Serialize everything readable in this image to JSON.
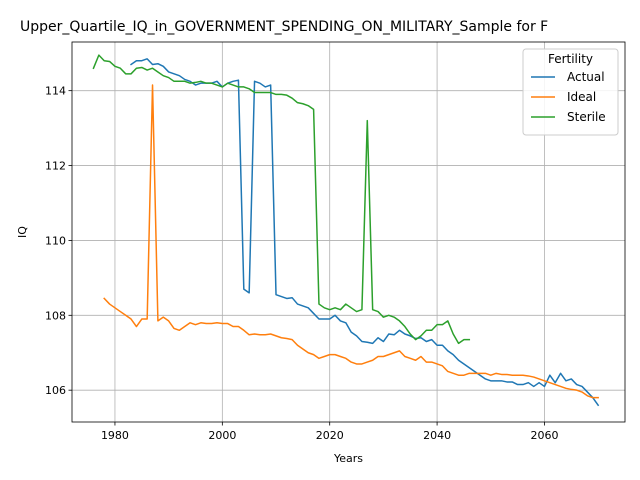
{
  "chart_data": {
    "type": "line",
    "title": "Upper_Quartile_IQ_in_GOVERNMENT_SPENDING_ON_MILITARY_Sample for F",
    "xlabel": "Years",
    "ylabel": "IQ",
    "xlim": [
      1972,
      2075
    ],
    "ylim": [
      105.15,
      115.3
    ],
    "xticks": [
      1980,
      2000,
      2020,
      2040,
      2060
    ],
    "yticks": [
      106,
      108,
      110,
      112,
      114
    ],
    "grid": true,
    "legend": {
      "title": "Fertility",
      "placement": "top-right"
    },
    "series": [
      {
        "name": "Actual",
        "color": "#1f77b4",
        "x": [
          1983,
          1984,
          1985,
          1986,
          1987,
          1988,
          1989,
          1990,
          1991,
          1992,
          1993,
          1994,
          1995,
          1996,
          1997,
          1998,
          1999,
          2000,
          2001,
          2002,
          2003,
          2004,
          2005,
          2006,
          2007,
          2008,
          2009,
          2010,
          2011,
          2012,
          2013,
          2014,
          2015,
          2016,
          2017,
          2018,
          2019,
          2020,
          2021,
          2022,
          2023,
          2024,
          2025,
          2026,
          2027,
          2028,
          2029,
          2030,
          2031,
          2032,
          2033,
          2034,
          2035,
          2036,
          2037,
          2038,
          2039,
          2040,
          2041,
          2042,
          2043,
          2044,
          2045,
          2046,
          2047,
          2048,
          2049,
          2050,
          2051,
          2052,
          2053,
          2054,
          2055,
          2056,
          2057,
          2058,
          2059,
          2060,
          2061,
          2062,
          2063,
          2064,
          2065,
          2066,
          2067,
          2068,
          2069,
          2070
        ],
        "y": [
          114.7,
          114.8,
          114.8,
          114.85,
          114.7,
          114.72,
          114.65,
          114.5,
          114.45,
          114.4,
          114.3,
          114.25,
          114.15,
          114.2,
          114.2,
          114.2,
          114.25,
          114.1,
          114.2,
          114.25,
          114.28,
          108.7,
          108.6,
          114.25,
          114.2,
          114.1,
          114.15,
          108.55,
          108.5,
          108.45,
          108.47,
          108.3,
          108.25,
          108.2,
          108.05,
          107.9,
          107.9,
          107.9,
          108.0,
          107.85,
          107.8,
          107.55,
          107.45,
          107.3,
          107.28,
          107.25,
          107.4,
          107.3,
          107.5,
          107.48,
          107.6,
          107.5,
          107.45,
          107.38,
          107.4,
          107.3,
          107.35,
          107.2,
          107.2,
          107.05,
          106.95,
          106.8,
          106.7,
          106.6,
          106.5,
          106.4,
          106.3,
          106.25,
          106.25,
          106.25,
          106.22,
          106.22,
          106.15,
          106.15,
          106.2,
          106.1,
          106.2,
          106.1,
          106.4,
          106.2,
          106.45,
          106.25,
          106.3,
          106.15,
          106.1,
          105.95,
          105.8,
          105.6
        ]
      },
      {
        "name": "Ideal",
        "color": "#ff7f0e",
        "x": [
          1978,
          1979,
          1980,
          1981,
          1982,
          1983,
          1984,
          1985,
          1986,
          1987,
          1988,
          1989,
          1990,
          1991,
          1992,
          1993,
          1994,
          1995,
          1996,
          1997,
          1998,
          1999,
          2000,
          2001,
          2002,
          2003,
          2004,
          2005,
          2006,
          2007,
          2008,
          2009,
          2010,
          2011,
          2012,
          2013,
          2014,
          2015,
          2016,
          2017,
          2018,
          2019,
          2020,
          2021,
          2022,
          2023,
          2024,
          2025,
          2026,
          2027,
          2028,
          2029,
          2030,
          2031,
          2032,
          2033,
          2034,
          2035,
          2036,
          2037,
          2038,
          2039,
          2040,
          2041,
          2042,
          2043,
          2044,
          2045,
          2046,
          2047,
          2048,
          2049,
          2050,
          2051,
          2052,
          2053,
          2054,
          2055,
          2056,
          2057,
          2058,
          2059,
          2060,
          2061,
          2062,
          2063,
          2064,
          2065,
          2066,
          2067,
          2068,
          2069,
          2070
        ],
        "y": [
          108.45,
          108.3,
          108.2,
          108.1,
          108.0,
          107.9,
          107.7,
          107.9,
          107.9,
          114.15,
          107.85,
          107.95,
          107.85,
          107.65,
          107.6,
          107.7,
          107.8,
          107.75,
          107.8,
          107.78,
          107.78,
          107.8,
          107.78,
          107.78,
          107.7,
          107.7,
          107.6,
          107.48,
          107.5,
          107.48,
          107.48,
          107.5,
          107.45,
          107.4,
          107.38,
          107.35,
          107.2,
          107.1,
          107.0,
          106.95,
          106.85,
          106.9,
          106.95,
          106.95,
          106.9,
          106.85,
          106.75,
          106.7,
          106.7,
          106.75,
          106.8,
          106.9,
          106.9,
          106.95,
          107.0,
          107.05,
          106.9,
          106.85,
          106.8,
          106.9,
          106.75,
          106.75,
          106.7,
          106.65,
          106.5,
          106.45,
          106.4,
          106.4,
          106.45,
          106.45,
          106.45,
          106.45,
          106.4,
          106.45,
          106.42,
          106.42,
          106.4,
          106.4,
          106.4,
          106.38,
          106.35,
          106.3,
          106.25,
          106.2,
          106.15,
          106.1,
          106.05,
          106.02,
          106.0,
          105.95,
          105.85,
          105.8,
          105.8
        ]
      },
      {
        "name": "Sterile",
        "color": "#2ca02c",
        "x": [
          1976,
          1977,
          1978,
          1979,
          1980,
          1981,
          1982,
          1983,
          1984,
          1985,
          1986,
          1987,
          1988,
          1989,
          1990,
          1991,
          1992,
          1993,
          1994,
          1995,
          1996,
          1997,
          1998,
          1999,
          2000,
          2001,
          2002,
          2003,
          2004,
          2005,
          2006,
          2007,
          2008,
          2009,
          2010,
          2011,
          2012,
          2013,
          2014,
          2015,
          2016,
          2017,
          2018,
          2019,
          2020,
          2021,
          2022,
          2023,
          2024,
          2025,
          2026,
          2027,
          2028,
          2029,
          2030,
          2031,
          2032,
          2033,
          2034,
          2035,
          2036,
          2037,
          2038,
          2039,
          2040,
          2041,
          2042,
          2043,
          2044,
          2045,
          2046
        ],
        "y": [
          114.6,
          114.95,
          114.8,
          114.78,
          114.65,
          114.6,
          114.45,
          114.45,
          114.6,
          114.62,
          114.55,
          114.6,
          114.5,
          114.4,
          114.35,
          114.25,
          114.25,
          114.25,
          114.2,
          114.22,
          114.25,
          114.2,
          114.2,
          114.15,
          114.1,
          114.2,
          114.15,
          114.1,
          114.1,
          114.05,
          113.95,
          113.95,
          113.95,
          113.95,
          113.9,
          113.9,
          113.88,
          113.8,
          113.68,
          113.65,
          113.6,
          113.5,
          108.3,
          108.2,
          108.15,
          108.2,
          108.15,
          108.3,
          108.2,
          108.1,
          108.15,
          113.2,
          108.15,
          108.1,
          107.95,
          108.0,
          107.95,
          107.85,
          107.7,
          107.5,
          107.35,
          107.45,
          107.6,
          107.6,
          107.75,
          107.75,
          107.85,
          107.5,
          107.25,
          107.35,
          107.35
        ]
      }
    ]
  }
}
